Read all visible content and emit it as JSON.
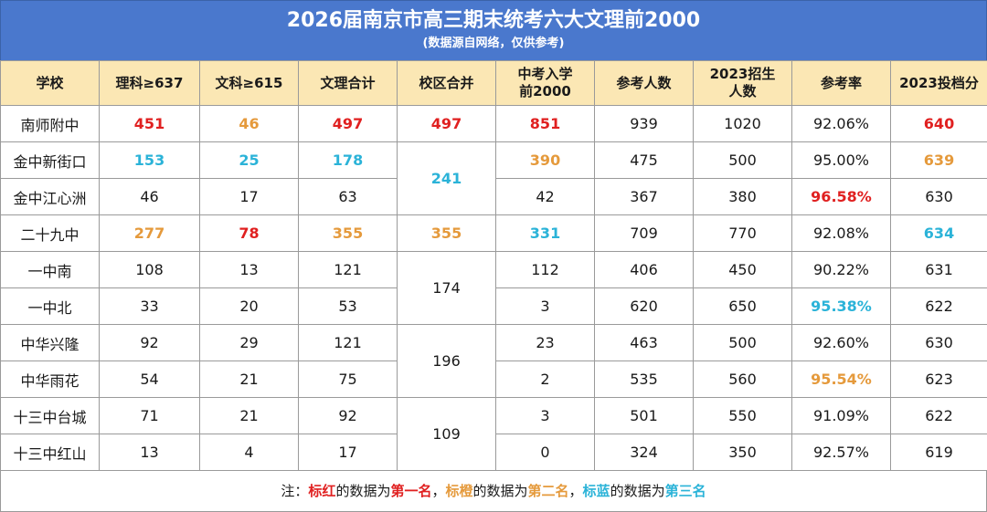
{
  "title": "2026届南京市高三期末统考六大文理前2000",
  "subtitle": "(数据源自网络，仅供参考)",
  "colors": {
    "header_bg": "#4a78cd",
    "th_bg": "#fbe7b4",
    "rank1": "#e02020",
    "rank2": "#e59a3c",
    "rank3": "#2bb3d8"
  },
  "columns": [
    "学校",
    "理科≥637",
    "文科≥615",
    "文理合计",
    "校区合并",
    "中考入学\n前2000",
    "参考人数",
    "2023招生\n人数",
    "参考率",
    "2023投档分"
  ],
  "rows": [
    [
      "南师附中",
      "451",
      "46",
      "497",
      "497",
      "851",
      "939",
      "1020",
      "92.06%",
      "640"
    ],
    [
      "金中新街口",
      "153",
      "25",
      "178",
      "241",
      "390",
      "475",
      "500",
      "95.00%",
      "639"
    ],
    [
      "金中江心洲",
      "46",
      "17",
      "63",
      "",
      "42",
      "367",
      "380",
      "96.58%",
      "630"
    ],
    [
      "二十九中",
      "277",
      "78",
      "355",
      "355",
      "331",
      "709",
      "770",
      "92.08%",
      "634"
    ],
    [
      "一中南",
      "108",
      "13",
      "121",
      "174",
      "112",
      "406",
      "450",
      "90.22%",
      "631"
    ],
    [
      "一中北",
      "33",
      "20",
      "53",
      "",
      "3",
      "620",
      "650",
      "95.38%",
      "622"
    ],
    [
      "中华兴隆",
      "92",
      "29",
      "121",
      "196",
      "23",
      "463",
      "500",
      "92.60%",
      "630"
    ],
    [
      "中华雨花",
      "54",
      "21",
      "75",
      "",
      "2",
      "535",
      "560",
      "95.54%",
      "623"
    ],
    [
      "十三中台城",
      "71",
      "21",
      "92",
      "109",
      "3",
      "501",
      "550",
      "91.09%",
      "622"
    ],
    [
      "十三中红山",
      "13",
      "4",
      "17",
      "",
      "0",
      "324",
      "350",
      "92.57%",
      "619"
    ]
  ],
  "note": {
    "prefix": "注：",
    "red_label": "标红",
    "mid1": "的数据为",
    "rank1": "第一名",
    "sep1": "，",
    "orange_label": "标橙",
    "mid2": "的数据为",
    "rank2": "第二名",
    "sep2": "，",
    "blue_label": "标蓝",
    "mid3": "的数据为",
    "rank3": "第三名"
  }
}
